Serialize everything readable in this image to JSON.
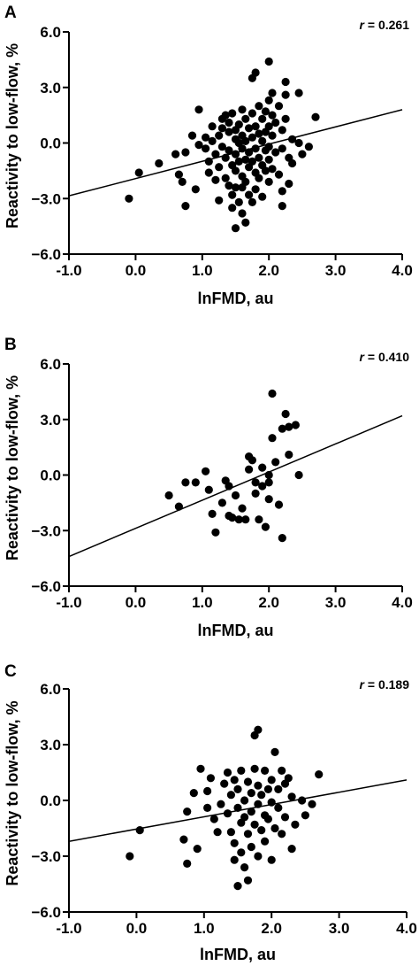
{
  "chart_data": [
    {
      "type": "scatter",
      "panel_label": "A",
      "xlabel": "lnFMD, au",
      "ylabel": "Reactivity to low-flow, %",
      "xlim": [
        -1.0,
        4.0
      ],
      "ylim": [
        -6.0,
        6.0
      ],
      "xticks": [
        "-1.0",
        "0.0",
        "1.0",
        "2.0",
        "3.0",
        "4.0"
      ],
      "yticks": [
        "6.0",
        "3.0",
        "0.0",
        "−3.0",
        "−6.0"
      ],
      "annotation": {
        "symbol": "r",
        "text": " = 0.261"
      },
      "regression_line": {
        "x": [
          -1.0,
          4.0
        ],
        "y": [
          -2.85,
          1.8
        ]
      },
      "points": [
        [
          -0.1,
          -3.0
        ],
        [
          0.05,
          -1.6
        ],
        [
          0.35,
          -1.1
        ],
        [
          0.6,
          -0.6
        ],
        [
          0.65,
          -1.7
        ],
        [
          0.7,
          -2.1
        ],
        [
          0.75,
          -3.4
        ],
        [
          0.75,
          -0.5
        ],
        [
          0.85,
          0.4
        ],
        [
          0.9,
          -2.5
        ],
        [
          0.95,
          -0.1
        ],
        [
          0.95,
          1.8
        ],
        [
          1.05,
          -0.3
        ],
        [
          1.05,
          0.3
        ],
        [
          1.1,
          -1.0
        ],
        [
          1.1,
          -1.6
        ],
        [
          1.15,
          0.9
        ],
        [
          1.15,
          0.1
        ],
        [
          1.2,
          -0.6
        ],
        [
          1.2,
          -2.0
        ],
        [
          1.25,
          0.4
        ],
        [
          1.25,
          -1.3
        ],
        [
          1.25,
          -3.1
        ],
        [
          1.3,
          1.3
        ],
        [
          1.3,
          0.8
        ],
        [
          1.3,
          -0.2
        ],
        [
          1.35,
          1.5
        ],
        [
          1.35,
          -0.8
        ],
        [
          1.35,
          -1.9
        ],
        [
          1.4,
          0.6
        ],
        [
          1.4,
          1.1
        ],
        [
          1.4,
          -0.4
        ],
        [
          1.4,
          -2.3
        ],
        [
          1.45,
          1.6
        ],
        [
          1.45,
          -1.2
        ],
        [
          1.45,
          -2.8
        ],
        [
          1.45,
          -3.5
        ],
        [
          1.5,
          0.2
        ],
        [
          1.5,
          0.7
        ],
        [
          1.5,
          -0.6
        ],
        [
          1.5,
          -1.5
        ],
        [
          1.5,
          -2.4
        ],
        [
          1.5,
          -4.6
        ],
        [
          1.55,
          1.0
        ],
        [
          1.55,
          0.0
        ],
        [
          1.55,
          -1.0
        ],
        [
          1.55,
          -3.2
        ],
        [
          1.6,
          1.8
        ],
        [
          1.6,
          0.4
        ],
        [
          1.6,
          -0.3
        ],
        [
          1.6,
          -1.8
        ],
        [
          1.6,
          -2.4
        ],
        [
          1.6,
          -3.8
        ],
        [
          1.65,
          1.3
        ],
        [
          1.65,
          0.1
        ],
        [
          1.65,
          -0.9
        ],
        [
          1.65,
          -2.1
        ],
        [
          1.65,
          -4.3
        ],
        [
          1.7,
          0.8
        ],
        [
          1.7,
          -0.5
        ],
        [
          1.7,
          -1.3
        ],
        [
          1.7,
          -2.8
        ],
        [
          1.75,
          3.5
        ],
        [
          1.75,
          1.6
        ],
        [
          1.75,
          0.3
        ],
        [
          1.75,
          -1.0
        ],
        [
          1.75,
          -3.2
        ],
        [
          1.8,
          3.8
        ],
        [
          1.8,
          0.9
        ],
        [
          1.8,
          -0.3
        ],
        [
          1.8,
          -1.6
        ],
        [
          1.8,
          -2.5
        ],
        [
          1.85,
          2.0
        ],
        [
          1.85,
          0.5
        ],
        [
          1.85,
          -0.8
        ],
        [
          1.85,
          -1.9
        ],
        [
          1.9,
          1.3
        ],
        [
          1.9,
          0.1
        ],
        [
          1.9,
          -1.2
        ],
        [
          1.9,
          -2.9
        ],
        [
          1.95,
          1.7
        ],
        [
          1.95,
          0.6
        ],
        [
          1.95,
          -0.4
        ],
        [
          1.95,
          -1.5
        ],
        [
          2.0,
          4.4
        ],
        [
          2.0,
          2.3
        ],
        [
          2.0,
          0.9
        ],
        [
          2.0,
          -0.2
        ],
        [
          2.0,
          -0.9
        ],
        [
          2.0,
          -2.1
        ],
        [
          2.05,
          1.5
        ],
        [
          2.05,
          2.7
        ],
        [
          2.05,
          0.4
        ],
        [
          2.05,
          -1.4
        ],
        [
          2.1,
          1.1
        ],
        [
          2.1,
          -0.5
        ],
        [
          2.15,
          2.0
        ],
        [
          2.15,
          -1.7
        ],
        [
          2.2,
          0.7
        ],
        [
          2.2,
          -0.3
        ],
        [
          2.2,
          -2.6
        ],
        [
          2.2,
          -3.4
        ],
        [
          2.25,
          3.3
        ],
        [
          2.25,
          2.6
        ],
        [
          2.25,
          1.3
        ],
        [
          2.3,
          -0.8
        ],
        [
          2.3,
          -2.2
        ],
        [
          2.35,
          0.2
        ],
        [
          2.35,
          -1.1
        ],
        [
          2.45,
          2.7
        ],
        [
          2.45,
          0.0
        ],
        [
          2.5,
          -0.6
        ],
        [
          2.6,
          -0.2
        ],
        [
          2.7,
          1.4
        ]
      ]
    },
    {
      "type": "scatter",
      "panel_label": "B",
      "xlabel": "lnFMD, au",
      "ylabel": "Reactivity to low-flow, %",
      "xlim": [
        -1.0,
        4.0
      ],
      "ylim": [
        -6.0,
        6.0
      ],
      "xticks": [
        "-1.0",
        "0.0",
        "1.0",
        "2.0",
        "3.0",
        "4.0"
      ],
      "yticks": [
        "6.0",
        "3.0",
        "0.0",
        "−3.0",
        "−6.0"
      ],
      "annotation": {
        "symbol": "r",
        "text": " = 0.410"
      },
      "regression_line": {
        "x": [
          -1.0,
          4.0
        ],
        "y": [
          -4.4,
          3.2
        ]
      },
      "points": [
        [
          0.5,
          -1.1
        ],
        [
          0.65,
          -1.7
        ],
        [
          0.75,
          -0.4
        ],
        [
          0.9,
          -0.4
        ],
        [
          1.05,
          0.2
        ],
        [
          1.1,
          -0.8
        ],
        [
          1.15,
          -2.1
        ],
        [
          1.2,
          -3.1
        ],
        [
          1.3,
          -1.5
        ],
        [
          1.35,
          -0.3
        ],
        [
          1.4,
          -2.2
        ],
        [
          1.4,
          -0.6
        ],
        [
          1.45,
          -2.3
        ],
        [
          1.5,
          -1.1
        ],
        [
          1.55,
          -2.4
        ],
        [
          1.6,
          -1.8
        ],
        [
          1.65,
          -2.4
        ],
        [
          1.7,
          1.0
        ],
        [
          1.7,
          0.3
        ],
        [
          1.75,
          0.8
        ],
        [
          1.8,
          -0.4
        ],
        [
          1.8,
          -1.0
        ],
        [
          1.85,
          -2.4
        ],
        [
          1.9,
          0.4
        ],
        [
          1.9,
          -0.6
        ],
        [
          1.95,
          -2.8
        ],
        [
          2.0,
          0.0
        ],
        [
          2.0,
          -1.3
        ],
        [
          2.0,
          -0.4
        ],
        [
          2.05,
          4.4
        ],
        [
          2.05,
          2.0
        ],
        [
          2.1,
          0.7
        ],
        [
          2.15,
          -1.6
        ],
        [
          2.2,
          2.5
        ],
        [
          2.2,
          -3.4
        ],
        [
          2.25,
          3.3
        ],
        [
          2.3,
          1.1
        ],
        [
          2.3,
          2.6
        ],
        [
          2.4,
          2.7
        ],
        [
          2.45,
          0.0
        ]
      ]
    },
    {
      "type": "scatter",
      "panel_label": "C",
      "xlabel": "lnFMD, au",
      "ylabel": "Reactivity to low-flow, %",
      "xlim": [
        -1.0,
        4.0
      ],
      "ylim": [
        -6.0,
        6.0
      ],
      "xticks": [
        "-1.0",
        "0.0",
        "1.0",
        "2.0",
        "3.0",
        "4.0"
      ],
      "yticks": [
        "6.0",
        "3.0",
        "0.0",
        "−3.0",
        "−6.0"
      ],
      "annotation": {
        "symbol": "r",
        "text": " = 0.189"
      },
      "regression_line": {
        "x": [
          -1.0,
          4.0
        ],
        "y": [
          -2.2,
          1.1
        ]
      },
      "points": [
        [
          -0.1,
          -3.0
        ],
        [
          0.05,
          -1.6
        ],
        [
          0.7,
          -2.1
        ],
        [
          0.75,
          -3.4
        ],
        [
          0.75,
          -0.6
        ],
        [
          0.85,
          0.4
        ],
        [
          0.9,
          -2.6
        ],
        [
          0.95,
          1.7
        ],
        [
          1.05,
          -0.4
        ],
        [
          1.05,
          0.5
        ],
        [
          1.1,
          1.2
        ],
        [
          1.15,
          -1.0
        ],
        [
          1.2,
          -1.7
        ],
        [
          1.25,
          -0.2
        ],
        [
          1.3,
          0.9
        ],
        [
          1.35,
          1.5
        ],
        [
          1.35,
          -0.7
        ],
        [
          1.4,
          -1.7
        ],
        [
          1.4,
          0.3
        ],
        [
          1.45,
          -2.3
        ],
        [
          1.45,
          1.1
        ],
        [
          1.45,
          -3.2
        ],
        [
          1.5,
          -4.6
        ],
        [
          1.5,
          -0.4
        ],
        [
          1.5,
          0.6
        ],
        [
          1.55,
          -1.2
        ],
        [
          1.55,
          1.6
        ],
        [
          1.55,
          -2.8
        ],
        [
          1.6,
          0.0
        ],
        [
          1.6,
          -0.9
        ],
        [
          1.6,
          -3.6
        ],
        [
          1.65,
          1.0
        ],
        [
          1.65,
          -1.8
        ],
        [
          1.65,
          -4.3
        ],
        [
          1.7,
          0.4
        ],
        [
          1.7,
          -0.6
        ],
        [
          1.7,
          -2.5
        ],
        [
          1.75,
          3.5
        ],
        [
          1.75,
          1.7
        ],
        [
          1.75,
          -1.3
        ],
        [
          1.8,
          3.8
        ],
        [
          1.8,
          0.8
        ],
        [
          1.8,
          -0.2
        ],
        [
          1.8,
          -3.0
        ],
        [
          1.85,
          -1.6
        ],
        [
          1.85,
          0.3
        ],
        [
          1.9,
          1.6
        ],
        [
          1.9,
          -0.8
        ],
        [
          1.9,
          -2.2
        ],
        [
          1.95,
          0.6
        ],
        [
          1.95,
          -1.0
        ],
        [
          2.0,
          -0.1
        ],
        [
          2.0,
          1.1
        ],
        [
          2.0,
          -3.2
        ],
        [
          2.05,
          2.6
        ],
        [
          2.05,
          -1.5
        ],
        [
          2.1,
          0.6
        ],
        [
          2.1,
          -0.4
        ],
        [
          2.15,
          1.6
        ],
        [
          2.15,
          -1.8
        ],
        [
          2.2,
          0.9
        ],
        [
          2.2,
          -0.9
        ],
        [
          2.25,
          1.2
        ],
        [
          2.3,
          -2.6
        ],
        [
          2.3,
          0.2
        ],
        [
          2.35,
          -1.3
        ],
        [
          2.45,
          0.0
        ],
        [
          2.5,
          -0.8
        ],
        [
          2.6,
          -0.2
        ],
        [
          2.7,
          1.4
        ]
      ]
    }
  ]
}
